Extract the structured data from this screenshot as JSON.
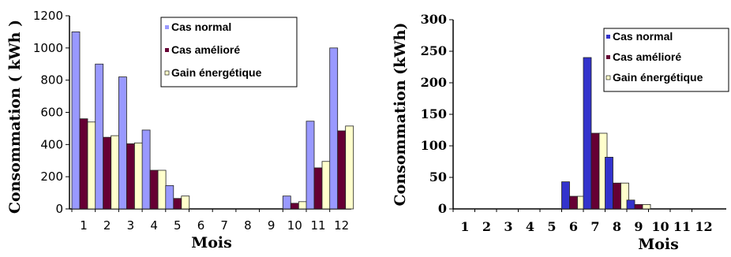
{
  "chart_data": [
    {
      "type": "bar",
      "categories": [
        "1",
        "2",
        "3",
        "4",
        "5",
        "6",
        "7",
        "8",
        "9",
        "10",
        "11",
        "12"
      ],
      "series": [
        {
          "name": "Cas normal",
          "values": [
            1100,
            900,
            820,
            490,
            145,
            0,
            0,
            0,
            0,
            80,
            545,
            1000
          ]
        },
        {
          "name": "Cas amélioré",
          "values": [
            560,
            445,
            405,
            240,
            65,
            0,
            0,
            0,
            0,
            35,
            255,
            485
          ]
        },
        {
          "name": "Gain énergétique",
          "values": [
            540,
            455,
            410,
            240,
            80,
            0,
            0,
            0,
            0,
            45,
            295,
            515
          ]
        }
      ],
      "colors": [
        "#9999ff",
        "#660033",
        "#ffffcc"
      ],
      "xlabel": "Mois",
      "ylabel": "Consommation ( kWh )",
      "ylim": [
        0,
        1200
      ],
      "yticks": [
        0,
        200,
        400,
        600,
        800,
        1000,
        1200
      ],
      "grid": false,
      "legend": "top-right"
    },
    {
      "type": "bar",
      "categories": [
        "1",
        "2",
        "3",
        "4",
        "5",
        "6",
        "7",
        "8",
        "9",
        "10",
        "11",
        "12"
      ],
      "series": [
        {
          "name": "Cas normal",
          "values": [
            0,
            0,
            0,
            0,
            0,
            43,
            240,
            82,
            14,
            0,
            0,
            0
          ]
        },
        {
          "name": "Cas amélioré",
          "values": [
            0,
            0,
            0,
            0,
            0,
            20,
            120,
            41,
            7,
            0,
            0,
            0
          ]
        },
        {
          "name": "Gain énergétique",
          "values": [
            0,
            0,
            0,
            0,
            0,
            20,
            120,
            41,
            7,
            0,
            0,
            0
          ]
        }
      ],
      "colors": [
        "#3333cc",
        "#660033",
        "#ffffcc"
      ],
      "xlabel": "Mois",
      "ylabel": "Consommation (kWh)",
      "ylim": [
        0,
        300
      ],
      "yticks": [
        0,
        50,
        100,
        150,
        200,
        250,
        300
      ],
      "grid": false,
      "legend": "top-right"
    }
  ]
}
